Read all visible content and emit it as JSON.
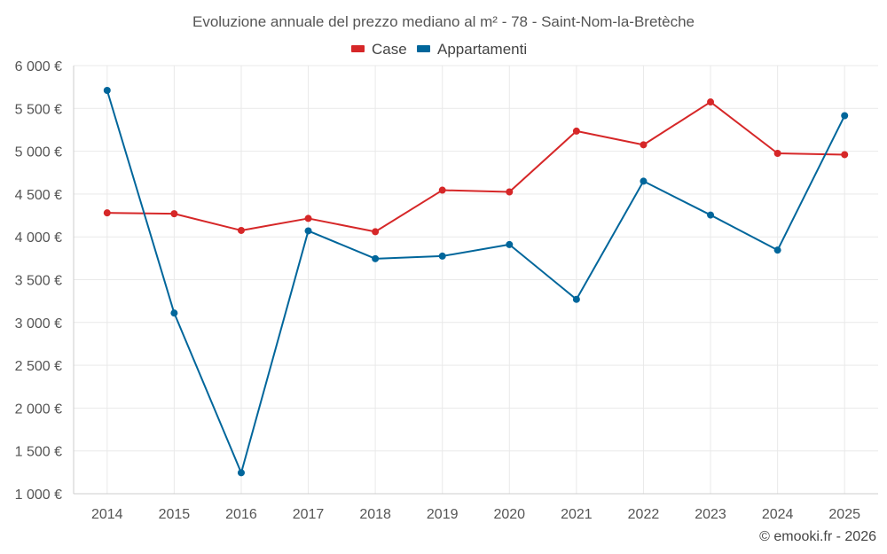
{
  "chart_data": {
    "type": "line",
    "title": "Evoluzione annuale del prezzo mediano al m² - 78 - Saint-Nom-la-Bretèche",
    "categories": [
      "2014",
      "2015",
      "2016",
      "2017",
      "2018",
      "2019",
      "2020",
      "2021",
      "2022",
      "2023",
      "2024",
      "2025"
    ],
    "series": [
      {
        "name": "Case",
        "color": "#d62728",
        "values": [
          4280,
          4270,
          4075,
          4215,
          4060,
          4545,
          4525,
          5235,
          5075,
          5575,
          4975,
          4960
        ]
      },
      {
        "name": "Appartamenti",
        "color": "#00669b",
        "values": [
          5710,
          3110,
          1245,
          4070,
          3745,
          3775,
          3910,
          3270,
          4650,
          4255,
          3845,
          5415
        ]
      }
    ],
    "ylim": [
      1000,
      6000
    ],
    "yticks": [
      1000,
      1500,
      2000,
      2500,
      3000,
      3500,
      4000,
      4500,
      5000,
      5500,
      6000
    ],
    "ytick_labels": [
      "1 000 €",
      "1 500 €",
      "2 000 €",
      "2 500 €",
      "3 000 €",
      "3 500 €",
      "4 000 €",
      "4 500 €",
      "5 000 €",
      "5 500 €",
      "6 000 €"
    ],
    "legend_position": "top-center",
    "grid": true,
    "credit": "© emooki.fr - 2026"
  }
}
